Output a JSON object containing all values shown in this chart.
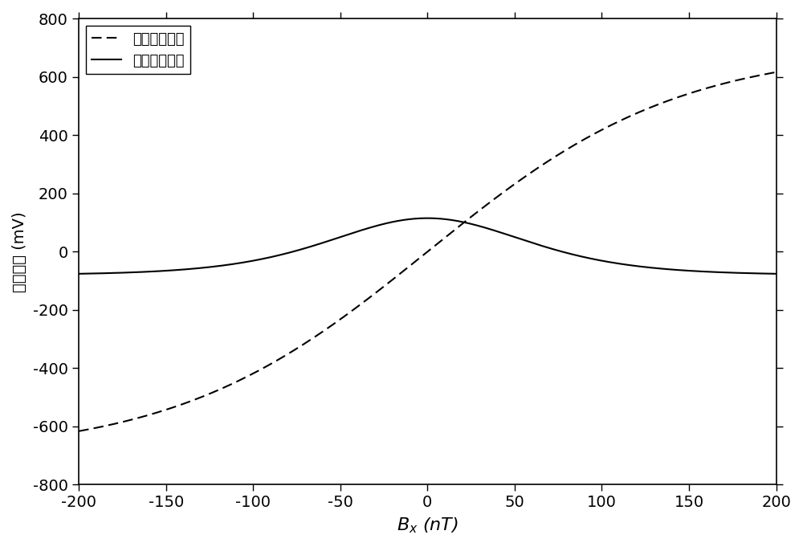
{
  "xlim": [
    -200,
    200
  ],
  "ylim": [
    -800,
    800
  ],
  "xticks": [
    -200,
    -150,
    -100,
    -50,
    0,
    50,
    100,
    150,
    200
  ],
  "yticks": [
    -800,
    -600,
    -400,
    -200,
    0,
    200,
    400,
    600,
    800
  ],
  "xlabel": "$B_x$ (nT)",
  "ylabel": "解调信号 (mV)",
  "legend_dashed": "正交解调信号",
  "legend_solid": "同向解调信号",
  "line_color": "#000000",
  "background_color": "#ffffff",
  "quadrature_amplitude": 620,
  "inphase_amplitude": 115,
  "linewidth": 1.5
}
